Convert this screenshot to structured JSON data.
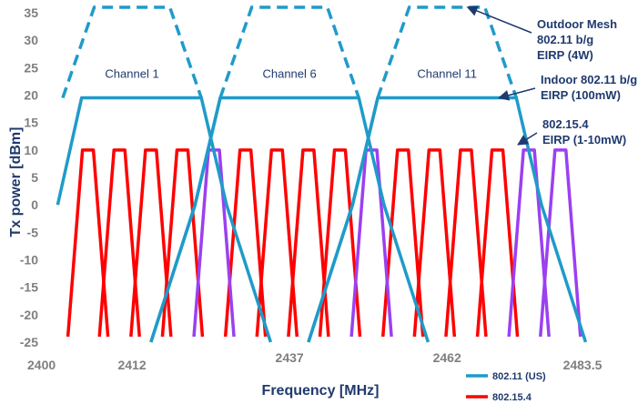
{
  "chart_data": {
    "type": "line",
    "title": "",
    "xlabel": "Frequency [MHz]",
    "ylabel": "Tx power [dBm]",
    "ylim": [
      -25,
      35
    ],
    "yticks": [
      35,
      30,
      25,
      20,
      15,
      10,
      5,
      0,
      -5,
      -10,
      -15,
      -20,
      -25
    ],
    "xlim": [
      2400,
      2483.5
    ],
    "xticks": [
      {
        "value": 2400,
        "label": "2400",
        "row": 2
      },
      {
        "value": 2412,
        "label": "2412",
        "row": 2
      },
      {
        "value": 2437,
        "label": "2437",
        "row": 1
      },
      {
        "value": 2462,
        "label": "2462",
        "row": 1
      },
      {
        "value": 2483.5,
        "label": "2483.5",
        "row": 2
      }
    ],
    "wifi_channels": [
      {
        "label": "Channel 1",
        "center": 2412
      },
      {
        "label": "Channel 6",
        "center": 2437
      },
      {
        "label": "Channel 11",
        "center": 2462
      }
    ],
    "wifi_outdoor_level": 36,
    "wifi_indoor_level": 19.5,
    "zigbee_channels_red": [
      2405,
      2410,
      2415,
      2420,
      2430,
      2435,
      2440,
      2445,
      2455,
      2460,
      2465,
      2470
    ],
    "zigbee_channels_purple": [
      2425,
      2450,
      2475,
      2480
    ],
    "zigbee_level": 10,
    "annotations": [
      {
        "lines": [
          "Outdoor Mesh",
          "802.11 b/g",
          "EIRP (4W)"
        ],
        "target": [
          2465,
          36
        ]
      },
      {
        "lines": [
          "Indoor 802.11 b/g",
          "EIRP (100mW)"
        ],
        "target": [
          2470,
          19.5
        ]
      },
      {
        "lines": [
          "802.15.4",
          "EIRP (1-10mW)"
        ],
        "target": [
          2473,
          11
        ]
      }
    ],
    "series": [
      {
        "name": "802.11 (US)",
        "color": "#1f9bc9"
      },
      {
        "name": "802.15.4",
        "color": "#ff0000"
      }
    ],
    "zigbee_alt_color": "#9b40f0"
  }
}
